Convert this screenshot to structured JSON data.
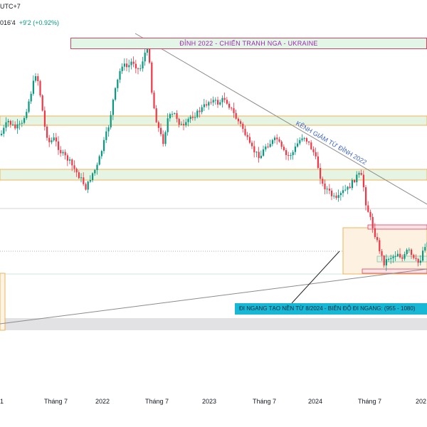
{
  "header": {
    "line1": "UTC+7",
    "quote": "016'4",
    "change": "+9'2 (+0.92%)"
  },
  "colors": {
    "up": "#089981",
    "down": "#f23645",
    "zone_fill": "#e6f4e3",
    "zone_border": "#f0b35a",
    "trend_line": "#8b8b8b",
    "label_bg": "#17b8d6"
  },
  "chart_data": {
    "type": "candlestick",
    "x_ticks": [
      "1",
      "Tháng 7",
      "2022",
      "Tháng 7",
      "2023",
      "Tháng 7",
      "2024",
      "Tháng 7",
      "202"
    ],
    "y_range": [
      880,
      1850
    ],
    "annotations": {
      "top_label": "ĐỈNH 2022 - CHIẾN TRANH NGA - UKRAINE",
      "channel_label": "KÊNH GIẢM TỪ ĐỈNH 2022",
      "range_label": "ĐI NGANG TẠO NỀN TỪ 8/2024 - BIÊN ĐỘ ĐI NGANG: (955 - 1080)"
    },
    "sideways_range": [
      955,
      1080
    ]
  }
}
